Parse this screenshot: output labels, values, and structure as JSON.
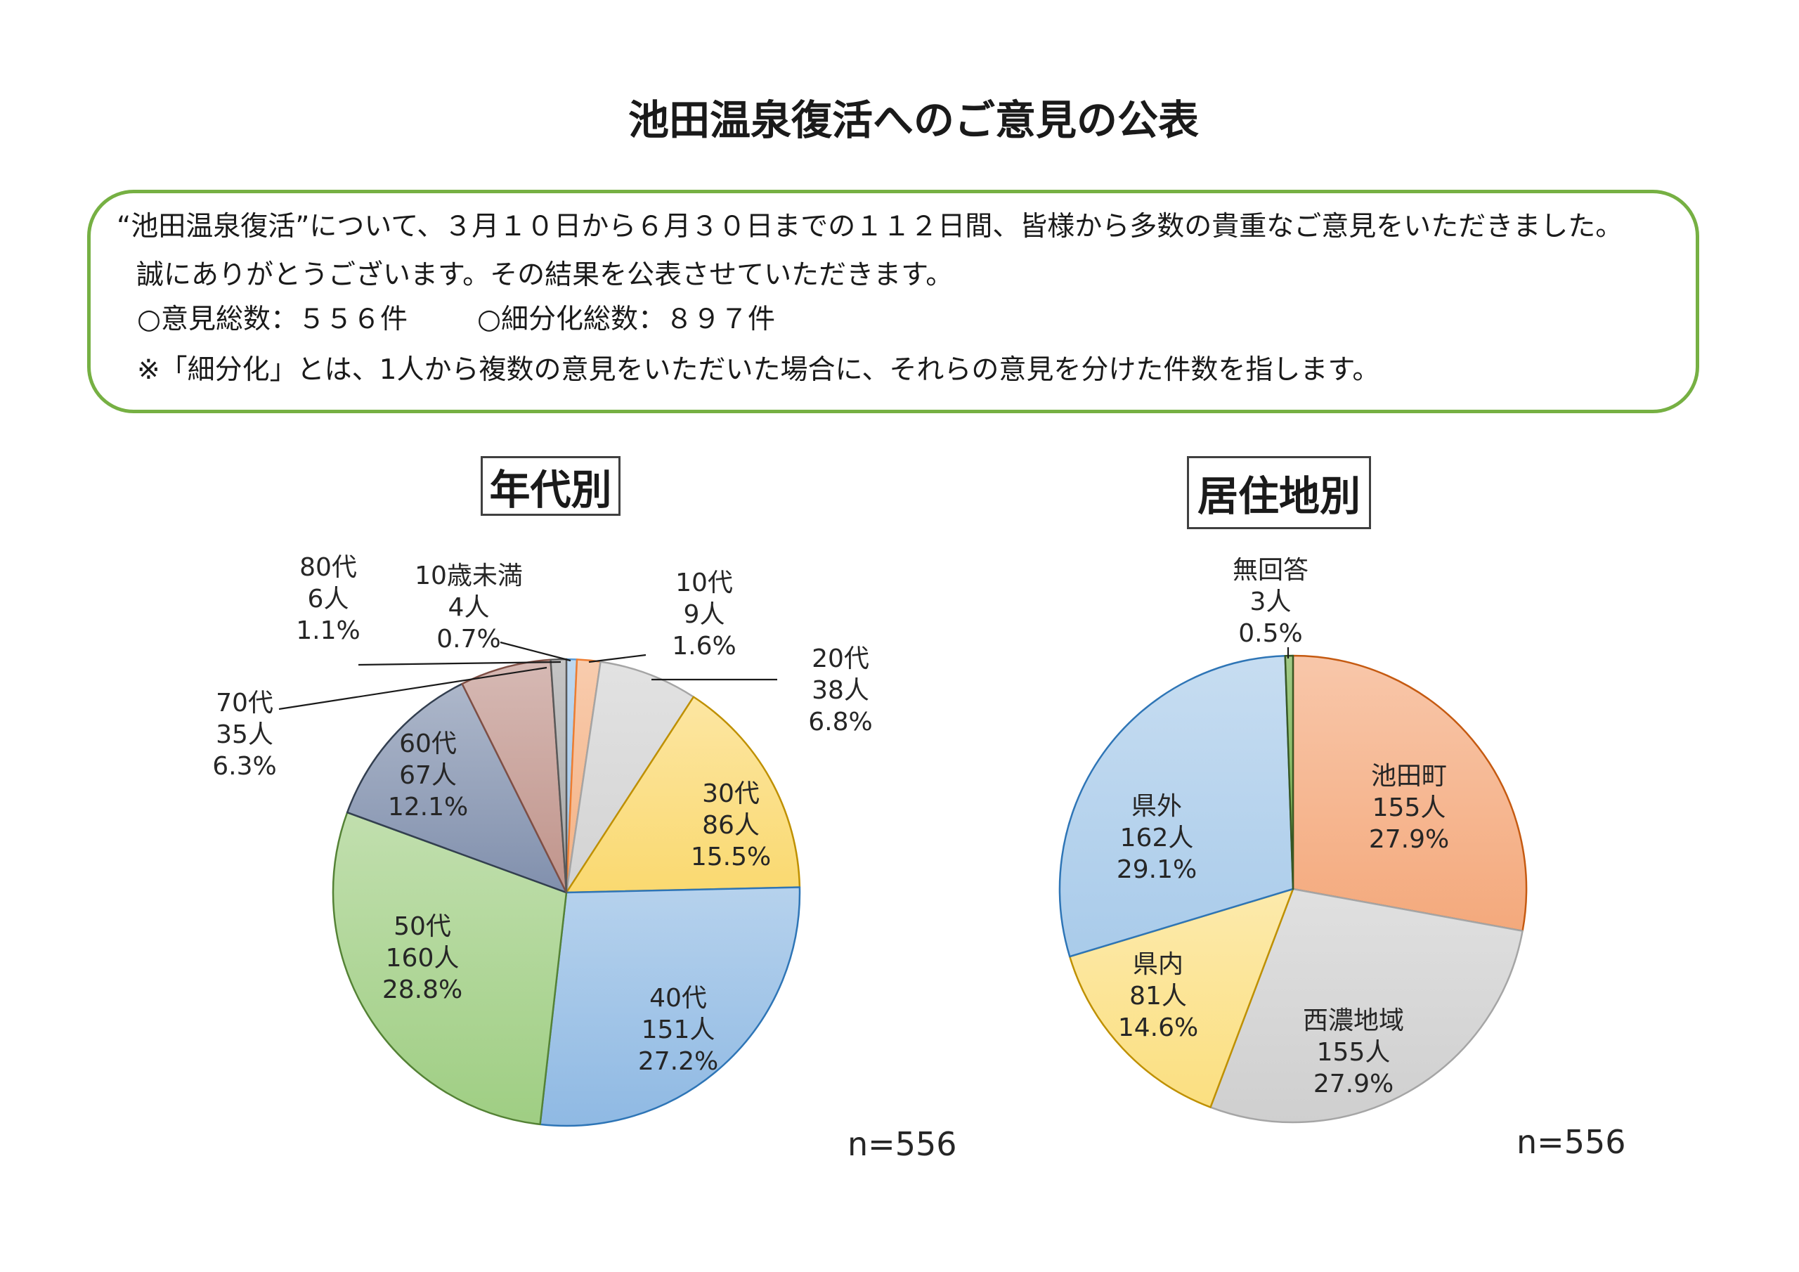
{
  "title": "池田温泉復活へのご意見の公表",
  "notice": {
    "line1": "“池田温泉復活”について、３月１０日から６月３０日までの１１２日間、皆様から多数の貴重なご意見をいただきました。",
    "line2": "誠にありがとうございます。その結果を公表させていただきます。",
    "total_opinions": "○意見総数：５５６件",
    "total_subdivided": "○細分化総数：８９７件",
    "note": "※「細分化」とは、1人から複数の意見をいただいた場合に、それらの意見を分けた件数を指します。"
  },
  "colors": {
    "notice_border": "#76b043",
    "title_box_border": "#404040",
    "label_text": "#262626"
  },
  "chart_data": [
    {
      "type": "pie",
      "title": "年代別",
      "categories": [
        "10歳未満",
        "10代",
        "20代",
        "30代",
        "40代",
        "50代",
        "60代",
        "70代",
        "80代"
      ],
      "values": [
        4,
        9,
        38,
        86,
        151,
        160,
        67,
        35,
        6
      ],
      "percentages": [
        0.7,
        1.6,
        6.8,
        15.5,
        27.2,
        28.8,
        12.1,
        6.3,
        1.1
      ],
      "unit": "人",
      "colors": [
        "#9dc3e6",
        "#f4b183",
        "#d3d3d3",
        "#fad970",
        "#8fb9e3",
        "#9fce83",
        "#8190ad",
        "#c0948b",
        "#a6a6a6"
      ],
      "stroke_colors": [
        "#5b9bd5",
        "#ed7d31",
        "#a5a5a5",
        "#bf9000",
        "#2e75b6",
        "#548235",
        "#333f50",
        "#7f4f45",
        "#595959"
      ],
      "start": "top, clockwise",
      "n_label": "n=556"
    },
    {
      "type": "pie",
      "title": "居住地別",
      "categories": [
        "池田町",
        "西濃地域",
        "県内",
        "県外",
        "無回答"
      ],
      "values": [
        155,
        155,
        81,
        162,
        3
      ],
      "percentages": [
        27.9,
        27.9,
        14.6,
        29.1,
        0.5
      ],
      "unit": "人",
      "colors": [
        "#f4a97c",
        "#cfcfcf",
        "#fbdf80",
        "#a9cbea",
        "#70ad47"
      ],
      "stroke_colors": [
        "#c55a11",
        "#a5a5a5",
        "#bf9000",
        "#2e75b6",
        "#385723"
      ],
      "start": "top, clockwise",
      "n_label": "n=556"
    }
  ]
}
